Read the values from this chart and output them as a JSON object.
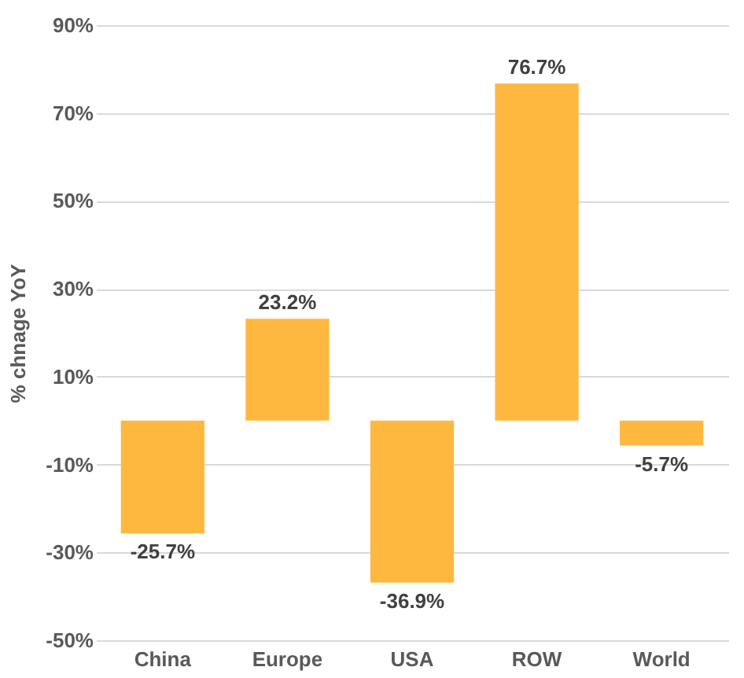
{
  "chart_data": {
    "type": "bar",
    "ylabel": "% chnage YoY",
    "categories": [
      "China",
      "Europe",
      "USA",
      "ROW",
      "World"
    ],
    "values": [
      -25.7,
      23.2,
      -36.9,
      76.7,
      -5.7
    ],
    "value_labels": [
      "-25.7%",
      "23.2%",
      "-36.9%",
      "76.7%",
      "-5.7%"
    ],
    "color": "#ffb83f",
    "ylim": [
      -50,
      90
    ],
    "yticks": [
      {
        "value": -50,
        "label": "-50%"
      },
      {
        "value": -30,
        "label": "-30%"
      },
      {
        "value": -10,
        "label": "-10%"
      },
      {
        "value": 10,
        "label": "10%"
      },
      {
        "value": 30,
        "label": "30%"
      },
      {
        "value": 50,
        "label": "50%"
      },
      {
        "value": 70,
        "label": "70%"
      },
      {
        "value": 90,
        "label": "90%"
      }
    ],
    "grid": "y"
  }
}
